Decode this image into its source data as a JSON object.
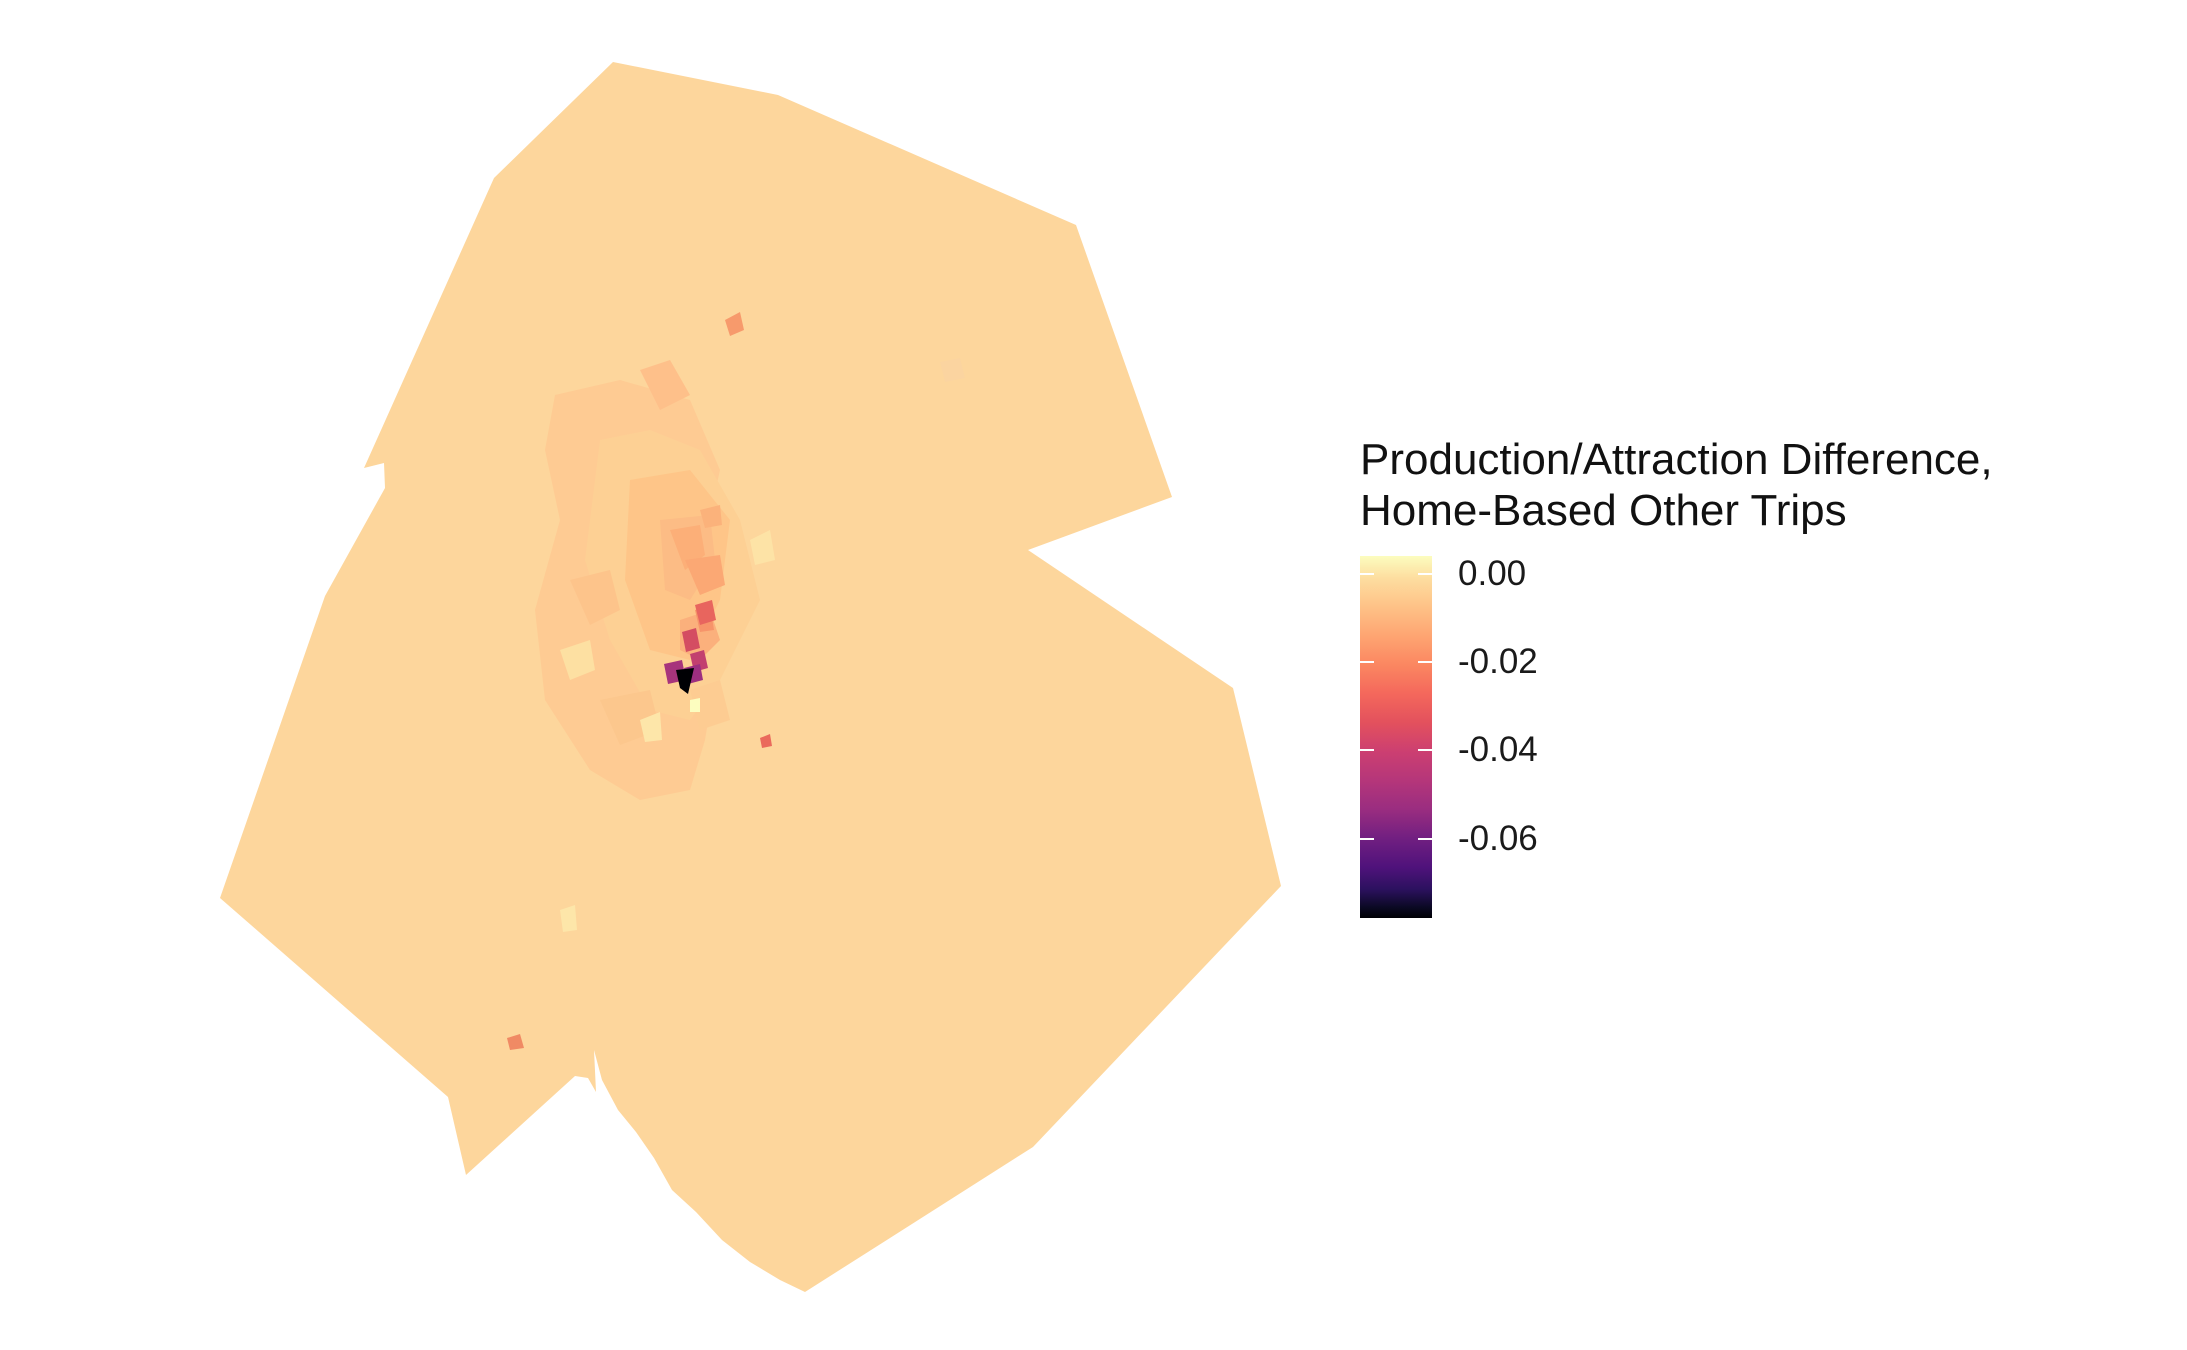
{
  "legend": {
    "title_line1": "Production/Attraction Difference,",
    "title_line2": "Home-Based Other Trips",
    "ticks": [
      {
        "label": "0.00",
        "value": 0.0
      },
      {
        "label": "-0.02",
        "value": -0.02
      },
      {
        "label": "-0.04",
        "value": -0.04
      },
      {
        "label": "-0.06",
        "value": -0.06
      }
    ],
    "range": [
      -0.078,
      0.004
    ],
    "palette": "magma",
    "colors": [
      "#fcfdbf",
      "#fec287",
      "#fb8761",
      "#e3515d",
      "#b5367a",
      "#711f81",
      "#2c115f",
      "#000004"
    ]
  },
  "map": {
    "base_color": "#fdd69c",
    "hotspot_color": "#000004"
  }
}
